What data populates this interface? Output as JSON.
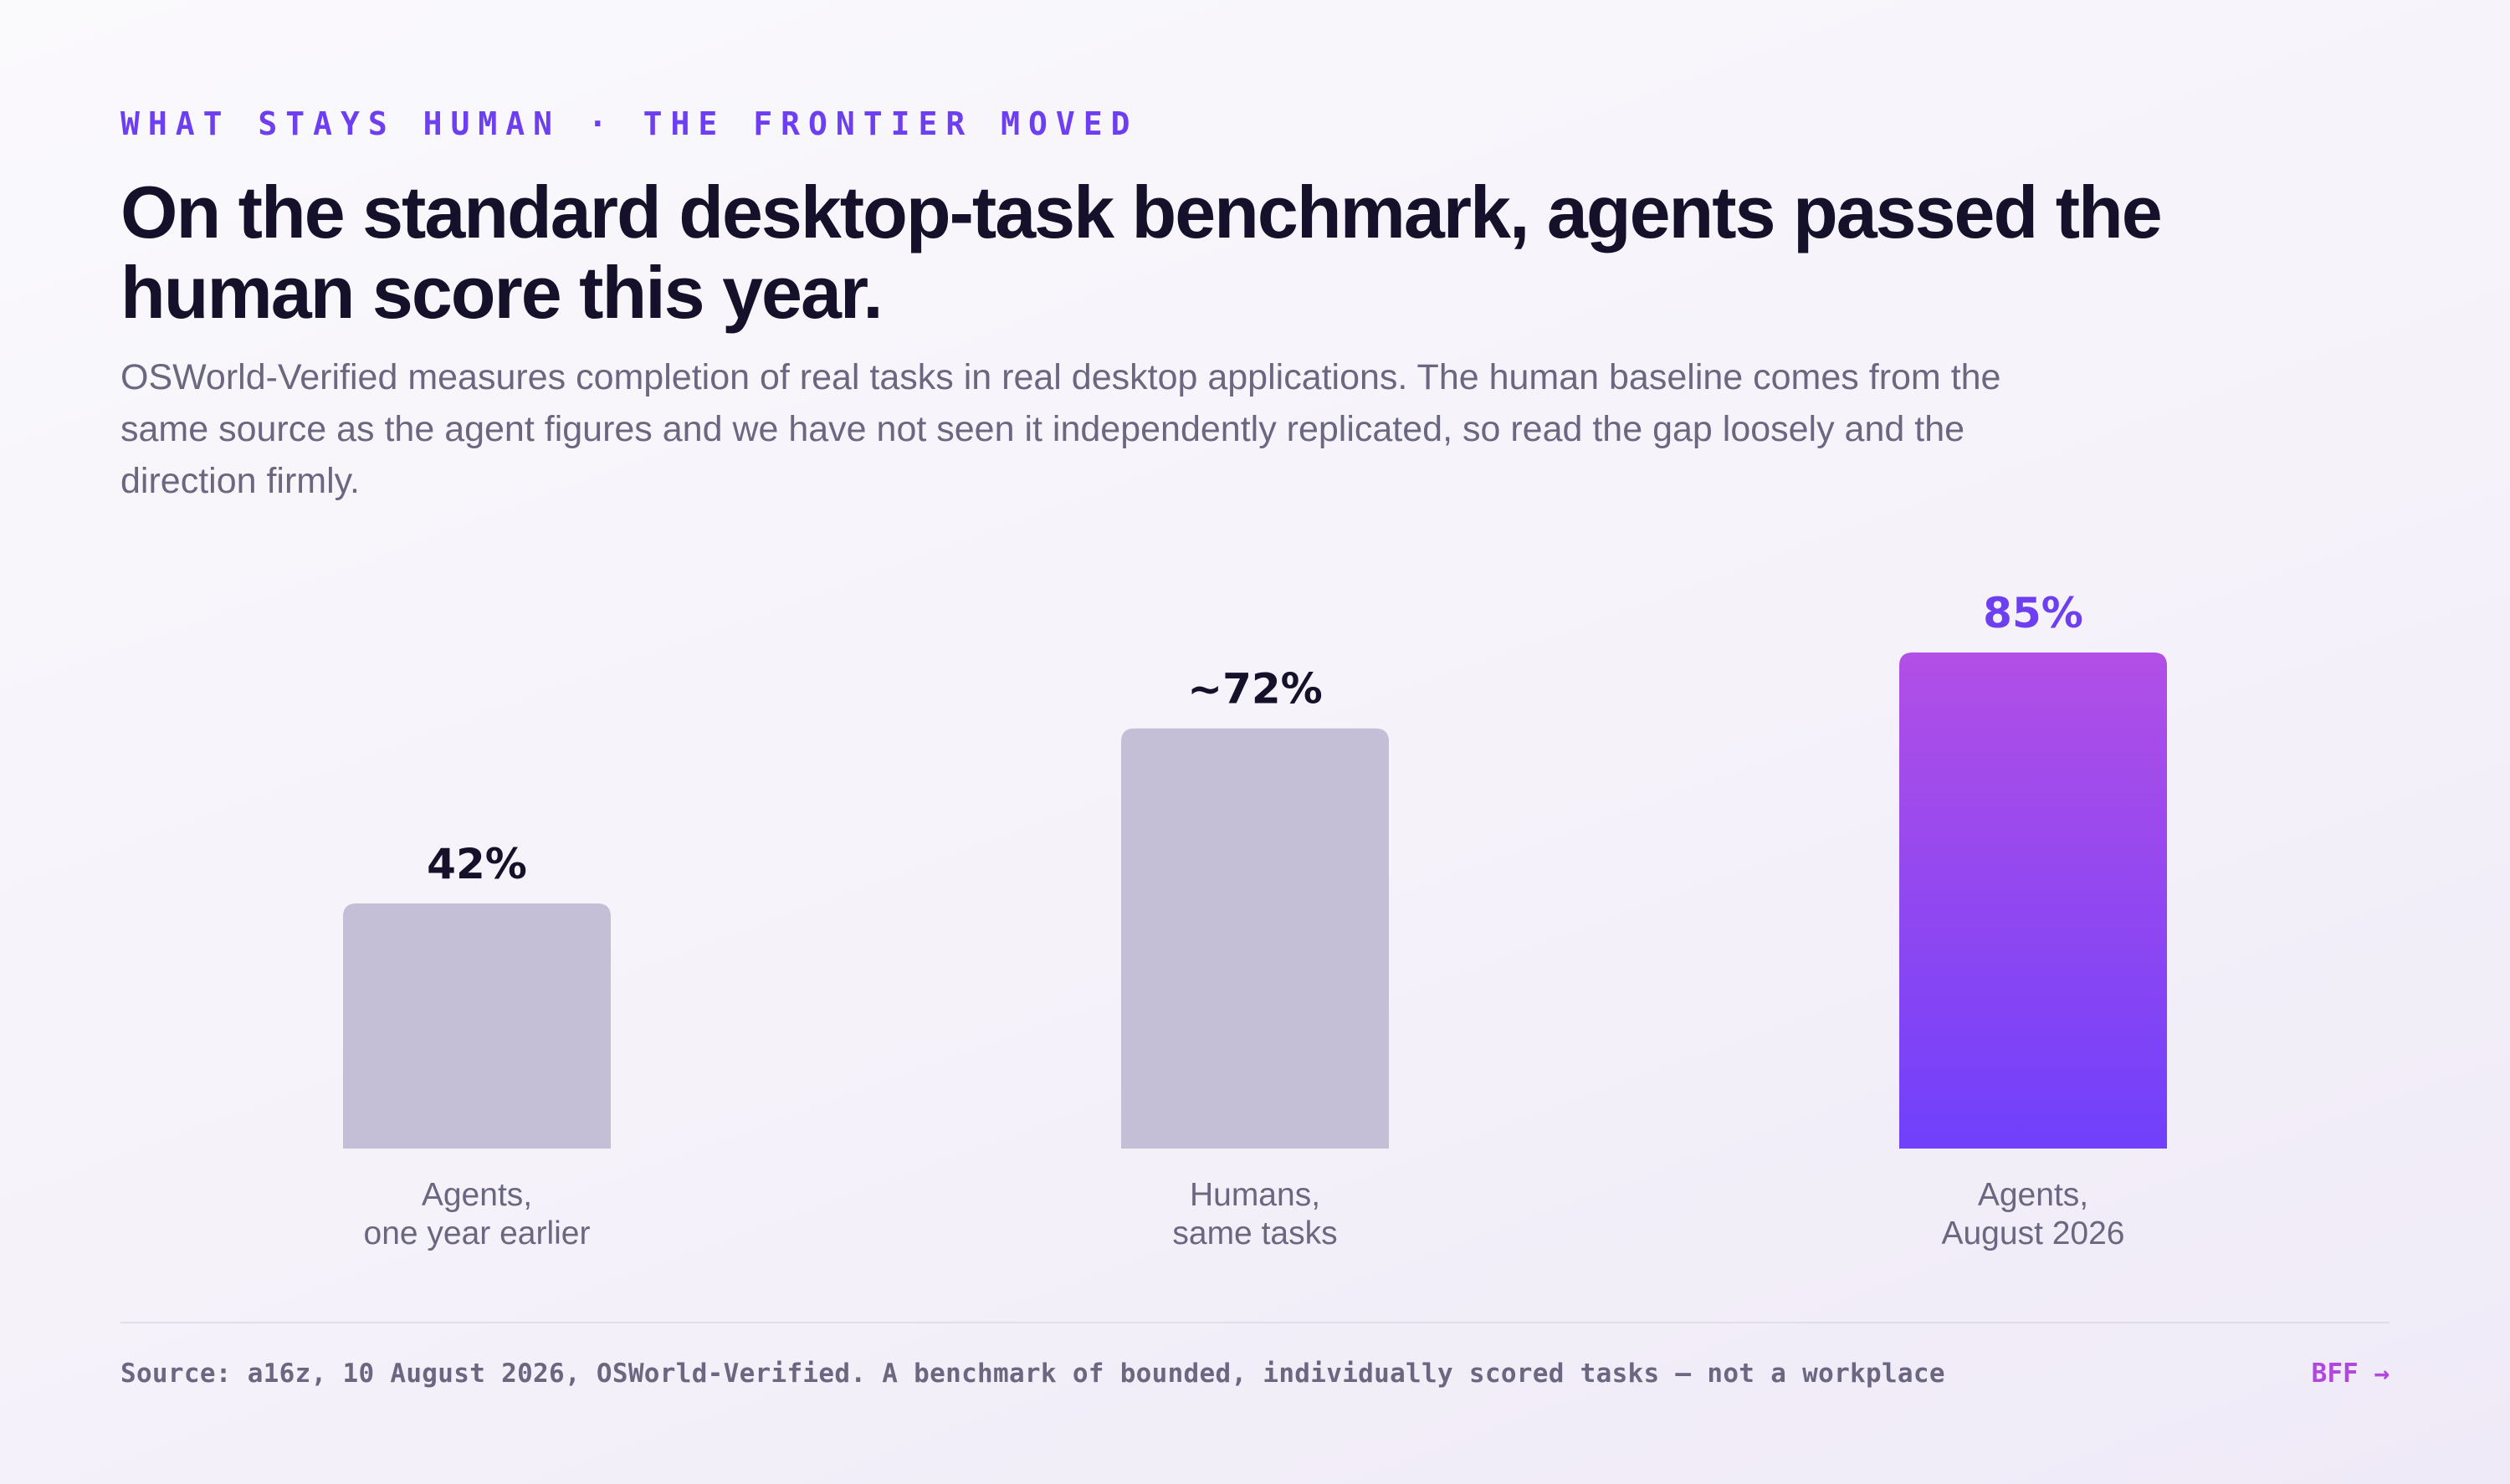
{
  "header": {
    "eyebrow": "WHAT STAYS HUMAN · THE FRONTIER MOVED",
    "title": "On the standard desktop-task benchmark, agents passed the human score this year.",
    "subtitle": "OSWorld-Verified measures completion of real tasks in real desktop applications. The human baseline comes from the same source as the agent figures and we have not seen it independently replicated, so read the gap loosely and the direction firmly."
  },
  "chart_data": {
    "type": "bar",
    "categories": [
      [
        "Agents,",
        "one year earlier"
      ],
      [
        "Humans,",
        "same tasks"
      ],
      [
        "Agents,",
        "August 2026"
      ]
    ],
    "values": [
      42,
      72,
      85
    ],
    "value_labels": [
      "42%",
      "~72%",
      "85%"
    ],
    "ylim": [
      0,
      85
    ],
    "grid": false,
    "highlight_index": 2
  },
  "colors": {
    "muted_bar": "#c4bfd6",
    "highlight_top": "#b24fe6",
    "highlight_bottom": "#7040fb",
    "value_label": "#15112a",
    "highlight_label": "#6d3ff0",
    "category_label": "#6c6780"
  },
  "footer": {
    "source": "Source: a16z, 10 August 2026, OSWorld-Verified. A benchmark of bounded, individually scored tasks — not a workplace",
    "brand": "BFF →"
  }
}
